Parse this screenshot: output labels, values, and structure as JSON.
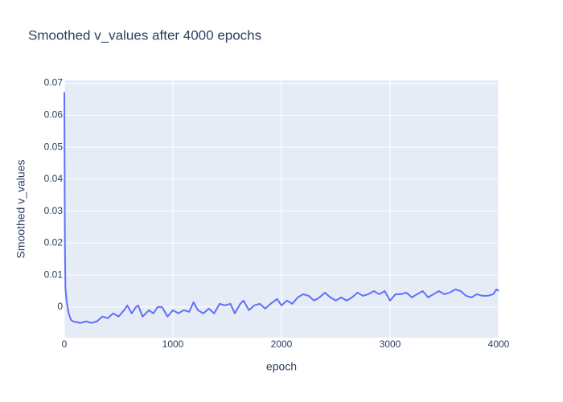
{
  "chart_data": {
    "type": "line",
    "title": "Smoothed v_values after 4000 epochs",
    "x_label": "epoch",
    "y_label": "Smoothed v_values",
    "x": [
      0,
      5,
      10,
      20,
      40,
      60,
      80,
      150,
      200,
      250,
      300,
      350,
      400,
      450,
      500,
      550,
      580,
      620,
      660,
      680,
      720,
      780,
      820,
      860,
      900,
      950,
      1000,
      1050,
      1100,
      1150,
      1190,
      1230,
      1280,
      1330,
      1380,
      1430,
      1480,
      1530,
      1570,
      1620,
      1650,
      1700,
      1750,
      1800,
      1850,
      1900,
      1960,
      2000,
      2050,
      2100,
      2150,
      2200,
      2250,
      2300,
      2350,
      2400,
      2450,
      2500,
      2550,
      2600,
      2650,
      2700,
      2750,
      2800,
      2850,
      2900,
      2950,
      3000,
      3050,
      3100,
      3150,
      3200,
      3250,
      3300,
      3350,
      3400,
      3450,
      3500,
      3550,
      3600,
      3650,
      3700,
      3750,
      3800,
      3850,
      3900,
      3950,
      3980,
      4000
    ],
    "values": [
      0.0672,
      0.02,
      0.006,
      0.002,
      -0.002,
      -0.004,
      -0.0045,
      -0.005,
      -0.0045,
      -0.005,
      -0.0045,
      -0.003,
      -0.0035,
      -0.002,
      -0.003,
      -0.001,
      0.0005,
      -0.002,
      0,
      0.0005,
      -0.003,
      -0.001,
      -0.002,
      0,
      0,
      -0.003,
      -0.001,
      -0.002,
      -0.001,
      -0.0015,
      0.0015,
      -0.001,
      -0.002,
      -0.0005,
      -0.002,
      0.001,
      0.0005,
      0.001,
      -0.002,
      0.001,
      0.002,
      -0.001,
      0.0005,
      0.001,
      -0.0005,
      0.001,
      0.0025,
      0.0005,
      0.002,
      0.001,
      0.003,
      0.004,
      0.0035,
      0.002,
      0.003,
      0.0045,
      0.003,
      0.002,
      0.003,
      0.002,
      0.003,
      0.0045,
      0.0035,
      0.004,
      0.005,
      0.004,
      0.005,
      0.002,
      0.004,
      0.004,
      0.0045,
      0.003,
      0.004,
      0.005,
      0.003,
      0.004,
      0.005,
      0.004,
      0.0045,
      0.0055,
      0.005,
      0.0035,
      0.003,
      0.004,
      0.0035,
      0.0035,
      0.004,
      0.0055,
      0.005
    ],
    "color": "#636efa",
    "xlim": [
      0,
      4000
    ],
    "xticks": [
      0,
      1000,
      2000,
      3000,
      4000
    ],
    "ylim": [
      -0.0096,
      0.0709
    ],
    "yticks": [
      0,
      0.01,
      0.02,
      0.03,
      0.04,
      0.05,
      0.06,
      0.07
    ],
    "grid": true
  }
}
